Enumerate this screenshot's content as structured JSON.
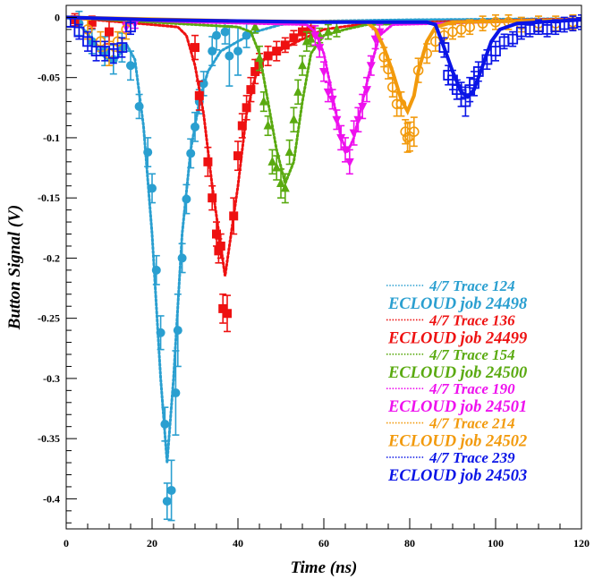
{
  "chart_data": {
    "type": "scatter",
    "title": "",
    "xlabel": "Time (ns)",
    "ylabel": "Button Signal (V)",
    "xlim": [
      0,
      120
    ],
    "ylim": [
      -0.425,
      0.01
    ],
    "x_ticks": [
      0,
      20,
      40,
      60,
      80,
      100,
      120
    ],
    "y_ticks": [
      0,
      -0.05,
      -0.1,
      -0.15,
      -0.2,
      -0.25,
      -0.3,
      -0.35,
      -0.4
    ],
    "x_tick_labels": [
      "0",
      "20",
      "40",
      "60",
      "80",
      "100",
      "120"
    ],
    "y_tick_labels": [
      "0",
      "-0.05",
      "-0.1",
      "-0.15",
      "-0.2",
      "-0.25",
      "-0.3",
      "-0.35",
      "-0.4"
    ],
    "grid": false,
    "legend_position": "bottom-right",
    "series": [
      {
        "trace_name": "4/7 Trace 124",
        "model_name": "ECLOUD job 24498",
        "color": "#2a9fd0",
        "marker": "circle-filled",
        "line_points": [
          [
            0,
            0
          ],
          [
            2,
            -0.003
          ],
          [
            5,
            -0.013
          ],
          [
            8,
            -0.03
          ],
          [
            10,
            -0.036
          ],
          [
            12,
            -0.033
          ],
          [
            14,
            -0.022
          ],
          [
            16,
            -0.035
          ],
          [
            18,
            -0.09
          ],
          [
            20,
            -0.18
          ],
          [
            22,
            -0.3
          ],
          [
            23.5,
            -0.37
          ],
          [
            25,
            -0.3
          ],
          [
            27,
            -0.18
          ],
          [
            29,
            -0.11
          ],
          [
            31,
            -0.07
          ],
          [
            33,
            -0.045
          ],
          [
            36,
            -0.028
          ],
          [
            40,
            -0.02
          ],
          [
            44,
            -0.012
          ],
          [
            50,
            -0.006
          ],
          [
            60,
            -0.003
          ],
          [
            80,
            -0.002
          ],
          [
            120,
            -0.001
          ]
        ],
        "points": [
          [
            3,
            -0.005
          ],
          [
            6,
            -0.02
          ],
          [
            9,
            -0.028
          ],
          [
            11,
            -0.035
          ],
          [
            13,
            -0.025
          ],
          [
            15,
            -0.04
          ],
          [
            17,
            -0.074
          ],
          [
            19,
            -0.112
          ],
          [
            20,
            -0.142
          ],
          [
            21,
            -0.21
          ],
          [
            22,
            -0.262
          ],
          [
            23,
            -0.338
          ],
          [
            23.5,
            -0.402
          ],
          [
            24.5,
            -0.393
          ],
          [
            25.5,
            -0.312
          ],
          [
            26,
            -0.26
          ],
          [
            27,
            -0.2
          ],
          [
            28,
            -0.151
          ],
          [
            29,
            -0.113
          ],
          [
            30,
            -0.091
          ],
          [
            31,
            -0.07
          ],
          [
            32,
            -0.055
          ],
          [
            34,
            -0.028
          ],
          [
            35,
            -0.015
          ],
          [
            37,
            -0.012
          ],
          [
            38,
            -0.032
          ],
          [
            40,
            -0.028
          ],
          [
            42,
            -0.015
          ]
        ],
        "errors": [
          0.01,
          0.01,
          0.012,
          0.012,
          0.012,
          0.012,
          0.01,
          0.012,
          0.012,
          0.012,
          0.014,
          0.014,
          0.015,
          0.025,
          0.035,
          0.03,
          0.012,
          0.012,
          0.012,
          0.012,
          0.01,
          0.01,
          0.012,
          0.012,
          0.01,
          0.025,
          0.02,
          0.01
        ]
      },
      {
        "trace_name": "4/7 Trace 136",
        "model_name": "ECLOUD job 24499",
        "color": "#ee1111",
        "marker": "square-filled",
        "line_points": [
          [
            0,
            0
          ],
          [
            10,
            -0.003
          ],
          [
            20,
            -0.006
          ],
          [
            26,
            -0.008
          ],
          [
            28,
            -0.015
          ],
          [
            30,
            -0.04
          ],
          [
            32,
            -0.08
          ],
          [
            34,
            -0.14
          ],
          [
            36,
            -0.19
          ],
          [
            37,
            -0.215
          ],
          [
            38,
            -0.19
          ],
          [
            40,
            -0.14
          ],
          [
            42,
            -0.08
          ],
          [
            44,
            -0.05
          ],
          [
            46,
            -0.035
          ],
          [
            50,
            -0.027
          ],
          [
            55,
            -0.018
          ],
          [
            60,
            -0.01
          ],
          [
            70,
            -0.005
          ],
          [
            120,
            -0.001
          ]
        ],
        "points": [
          [
            2,
            -0.002
          ],
          [
            6,
            -0.004
          ],
          [
            10,
            -0.012
          ],
          [
            30,
            -0.025
          ],
          [
            31,
            -0.065
          ],
          [
            33,
            -0.12
          ],
          [
            34,
            -0.15
          ],
          [
            35,
            -0.18
          ],
          [
            35.5,
            -0.194
          ],
          [
            36,
            -0.19
          ],
          [
            36.5,
            -0.242
          ],
          [
            37.5,
            -0.246
          ],
          [
            39,
            -0.165
          ],
          [
            40,
            -0.115
          ],
          [
            41,
            -0.09
          ],
          [
            42,
            -0.075
          ],
          [
            43,
            -0.06
          ],
          [
            44,
            -0.045
          ],
          [
            45,
            -0.038
          ],
          [
            47,
            -0.032
          ],
          [
            49,
            -0.028
          ],
          [
            51,
            -0.023
          ],
          [
            53,
            -0.017
          ],
          [
            55,
            -0.012
          ],
          [
            57,
            -0.01
          ]
        ],
        "errors": [
          0.005,
          0.005,
          0.01,
          0.01,
          0.012,
          0.012,
          0.01,
          0.01,
          0.01,
          0.01,
          0.012,
          0.015,
          0.015,
          0.012,
          0.01,
          0.01,
          0.01,
          0.01,
          0.008,
          0.008,
          0.008,
          0.006,
          0.006,
          0.006,
          0.006
        ]
      },
      {
        "trace_name": "4/7 Trace 154",
        "model_name": "ECLOUD job 24500",
        "color": "#5aaa10",
        "marker": "triangle-up-filled",
        "line_points": [
          [
            0,
            0
          ],
          [
            20,
            -0.004
          ],
          [
            40,
            -0.008
          ],
          [
            43,
            -0.012
          ],
          [
            45,
            -0.03
          ],
          [
            47,
            -0.07
          ],
          [
            49,
            -0.11
          ],
          [
            51,
            -0.138
          ],
          [
            53,
            -0.12
          ],
          [
            55,
            -0.07
          ],
          [
            57,
            -0.03
          ],
          [
            60,
            -0.015
          ],
          [
            65,
            -0.01
          ],
          [
            70,
            -0.006
          ],
          [
            120,
            -0.002
          ]
        ],
        "points": [
          [
            44,
            -0.008
          ],
          [
            45,
            -0.034
          ],
          [
            46,
            -0.07
          ],
          [
            47,
            -0.09
          ],
          [
            48,
            -0.12
          ],
          [
            49,
            -0.125
          ],
          [
            50,
            -0.138
          ],
          [
            51,
            -0.142
          ],
          [
            52,
            -0.112
          ],
          [
            53,
            -0.085
          ],
          [
            54,
            -0.062
          ],
          [
            55,
            -0.04
          ],
          [
            56,
            -0.02
          ],
          [
            57,
            -0.018
          ],
          [
            59,
            -0.015
          ],
          [
            61,
            -0.012
          ],
          [
            63,
            -0.01
          ]
        ],
        "errors": [
          0.005,
          0.01,
          0.008,
          0.008,
          0.01,
          0.01,
          0.012,
          0.012,
          0.01,
          0.01,
          0.01,
          0.008,
          0.008,
          0.006,
          0.006,
          0.006,
          0.006
        ]
      },
      {
        "trace_name": "4/7 Trace 190",
        "model_name": "ECLOUD job 24501",
        "color": "#ee11ee",
        "marker": "triangle-down-filled",
        "line_points": [
          [
            0,
            0
          ],
          [
            30,
            -0.004
          ],
          [
            56,
            -0.006
          ],
          [
            58,
            -0.012
          ],
          [
            60,
            -0.03
          ],
          [
            62,
            -0.065
          ],
          [
            64,
            -0.1
          ],
          [
            65.5,
            -0.112
          ],
          [
            67,
            -0.1
          ],
          [
            69,
            -0.07
          ],
          [
            71,
            -0.04
          ],
          [
            73,
            -0.015
          ],
          [
            76,
            -0.006
          ],
          [
            120,
            -0.002
          ]
        ],
        "points": [
          [
            14,
            -0.008
          ],
          [
            16,
            -0.005
          ],
          [
            58,
            -0.015
          ],
          [
            59,
            -0.025
          ],
          [
            60,
            -0.045
          ],
          [
            61,
            -0.062
          ],
          [
            62,
            -0.068
          ],
          [
            63,
            -0.085
          ],
          [
            64,
            -0.1
          ],
          [
            65,
            -0.11
          ],
          [
            66,
            -0.12
          ],
          [
            67,
            -0.096
          ],
          [
            68,
            -0.085
          ],
          [
            69,
            -0.074
          ],
          [
            70,
            -0.06
          ],
          [
            71,
            -0.04
          ],
          [
            72,
            -0.018
          ],
          [
            73,
            -0.012
          ]
        ],
        "errors": [
          0.004,
          0.004,
          0.008,
          0.008,
          0.008,
          0.008,
          0.008,
          0.008,
          0.01,
          0.01,
          0.01,
          0.01,
          0.01,
          0.01,
          0.01,
          0.008,
          0.008,
          0.006
        ]
      },
      {
        "trace_name": "4/7 Trace 214",
        "model_name": "ECLOUD job 24502",
        "color": "#f29a0c",
        "marker": "circle-open",
        "line_points": [
          [
            0,
            0
          ],
          [
            40,
            -0.003
          ],
          [
            70,
            -0.004
          ],
          [
            72,
            -0.01
          ],
          [
            74,
            -0.025
          ],
          [
            76,
            -0.045
          ],
          [
            78,
            -0.068
          ],
          [
            79.5,
            -0.078
          ],
          [
            81,
            -0.065
          ],
          [
            82,
            -0.045
          ],
          [
            84,
            -0.02
          ],
          [
            86,
            -0.008
          ],
          [
            90,
            -0.004
          ],
          [
            120,
            -0.002
          ]
        ],
        "points": [
          [
            5,
            -0.01
          ],
          [
            8,
            -0.02
          ],
          [
            10,
            -0.03
          ],
          [
            12,
            -0.02
          ],
          [
            14,
            -0.01
          ],
          [
            74,
            -0.033
          ],
          [
            75,
            -0.043
          ],
          [
            76,
            -0.058
          ],
          [
            77,
            -0.072
          ],
          [
            78,
            -0.072
          ],
          [
            79,
            -0.095
          ],
          [
            79.5,
            -0.1
          ],
          [
            80,
            -0.099
          ],
          [
            81,
            -0.095
          ],
          [
            82,
            -0.044
          ],
          [
            84,
            -0.03
          ],
          [
            86,
            -0.02
          ],
          [
            88,
            -0.015
          ],
          [
            90,
            -0.012
          ],
          [
            92,
            -0.01
          ],
          [
            94,
            -0.008
          ],
          [
            97,
            -0.005
          ],
          [
            100,
            -0.004
          ],
          [
            103,
            -0.004
          ],
          [
            106,
            -0.006
          ],
          [
            110,
            -0.005
          ],
          [
            114,
            -0.005
          ],
          [
            118,
            -0.004
          ]
        ],
        "errors": [
          0.008,
          0.008,
          0.01,
          0.008,
          0.008,
          0.008,
          0.008,
          0.008,
          0.01,
          0.01,
          0.01,
          0.012,
          0.012,
          0.012,
          0.01,
          0.008,
          0.008,
          0.006,
          0.006,
          0.006,
          0.006,
          0.006,
          0.006,
          0.006,
          0.006,
          0.006,
          0.006,
          0.006
        ]
      },
      {
        "trace_name": "4/7 Trace 239",
        "model_name": "ECLOUD job 24503",
        "color": "#0a14e6",
        "marker": "square-open",
        "line_points": [
          [
            0,
            0
          ],
          [
            20,
            -0.002
          ],
          [
            40,
            -0.003
          ],
          [
            60,
            -0.004
          ],
          [
            84,
            -0.004
          ],
          [
            86,
            -0.006
          ],
          [
            88,
            -0.025
          ],
          [
            90,
            -0.045
          ],
          [
            92,
            -0.062
          ],
          [
            93.5,
            -0.066
          ],
          [
            95,
            -0.06
          ],
          [
            97,
            -0.04
          ],
          [
            99,
            -0.02
          ],
          [
            101,
            -0.01
          ],
          [
            105,
            -0.005
          ],
          [
            120,
            -0.002
          ]
        ],
        "points": [
          [
            1,
            -0.004
          ],
          [
            3,
            -0.012
          ],
          [
            5,
            -0.02
          ],
          [
            7,
            -0.028
          ],
          [
            9,
            -0.028
          ],
          [
            11,
            -0.03
          ],
          [
            13,
            -0.025
          ],
          [
            15,
            -0.008
          ],
          [
            88,
            -0.025
          ],
          [
            89,
            -0.048
          ],
          [
            90,
            -0.052
          ],
          [
            91,
            -0.06
          ],
          [
            92,
            -0.064
          ],
          [
            93,
            -0.07
          ],
          [
            94,
            -0.06
          ],
          [
            95,
            -0.055
          ],
          [
            96,
            -0.045
          ],
          [
            98,
            -0.035
          ],
          [
            100,
            -0.028
          ],
          [
            102,
            -0.02
          ],
          [
            104,
            -0.018
          ],
          [
            106,
            -0.012
          ],
          [
            108,
            -0.01
          ],
          [
            110,
            -0.008
          ],
          [
            112,
            -0.01
          ],
          [
            114,
            -0.008
          ],
          [
            116,
            -0.006
          ],
          [
            118,
            -0.005
          ],
          [
            120,
            -0.004
          ]
        ],
        "errors": [
          0.004,
          0.006,
          0.008,
          0.008,
          0.008,
          0.008,
          0.008,
          0.006,
          0.008,
          0.008,
          0.008,
          0.008,
          0.01,
          0.012,
          0.01,
          0.01,
          0.008,
          0.008,
          0.008,
          0.006,
          0.006,
          0.006,
          0.006,
          0.006,
          0.006,
          0.006,
          0.006,
          0.006,
          0.006
        ]
      }
    ]
  }
}
